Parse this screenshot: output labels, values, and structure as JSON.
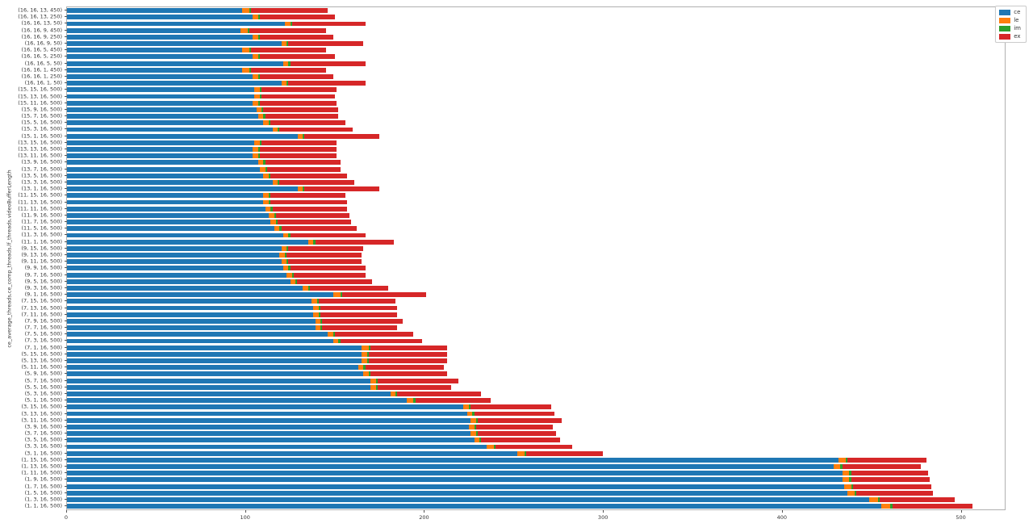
{
  "chart_data": {
    "type": "bar",
    "subtype": "horizontal-stacked",
    "title": "",
    "xlabel": "",
    "ylabel": "ce_average_threads,ce_comp_threads,lf_threads,videoBufferLength",
    "xlim": [
      0,
      525
    ],
    "x_ticks": [
      0,
      100,
      200,
      300,
      400,
      500
    ],
    "x_tick_labels": [
      "0",
      "100",
      "200",
      "300",
      "400",
      "500"
    ],
    "grid": "off",
    "legend_position": "upper-right-outside",
    "background": "#ffffff",
    "spine_color": "#b0b0b0",
    "categories": [
      "(16, 16, 13, 450)",
      "(16, 16, 13, 250)",
      "(16, 16, 13, 50)",
      "(16, 16, 9, 450)",
      "(16, 16, 9, 250)",
      "(16, 16, 9, 50)",
      "(16, 16, 5, 450)",
      "(16, 16, 5, 250)",
      "(16, 16, 5, 50)",
      "(16, 16, 1, 450)",
      "(16, 16, 1, 250)",
      "(16, 16, 1, 50)",
      "(15, 15, 16, 500)",
      "(15, 13, 16, 500)",
      "(15, 11, 16, 500)",
      "(15, 9, 16, 500)",
      "(15, 7, 16, 500)",
      "(15, 5, 16, 500)",
      "(15, 3, 16, 500)",
      "(15, 1, 16, 500)",
      "(13, 15, 16, 500)",
      "(13, 13, 16, 500)",
      "(13, 11, 16, 500)",
      "(13, 9, 16, 500)",
      "(13, 7, 16, 500)",
      "(13, 5, 16, 500)",
      "(13, 3, 16, 500)",
      "(13, 1, 16, 500)",
      "(11, 15, 16, 500)",
      "(11, 13, 16, 500)",
      "(11, 11, 16, 500)",
      "(11, 9, 16, 500)",
      "(11, 7, 16, 500)",
      "(11, 5, 16, 500)",
      "(11, 3, 16, 500)",
      "(11, 1, 16, 500)",
      "(9, 15, 16, 500)",
      "(9, 13, 16, 500)",
      "(9, 11, 16, 500)",
      "(9, 9, 16, 500)",
      "(9, 7, 16, 500)",
      "(9, 5, 16, 500)",
      "(9, 3, 16, 500)",
      "(9, 1, 16, 500)",
      "(7, 15, 16, 500)",
      "(7, 13, 16, 500)",
      "(7, 11, 16, 500)",
      "(7, 9, 16, 500)",
      "(7, 7, 16, 500)",
      "(7, 5, 16, 500)",
      "(7, 3, 16, 500)",
      "(7, 1, 16, 500)",
      "(5, 15, 16, 500)",
      "(5, 13, 16, 500)",
      "(5, 11, 16, 500)",
      "(5, 9, 16, 500)",
      "(5, 7, 16, 500)",
      "(5, 5, 16, 500)",
      "(5, 3, 16, 500)",
      "(5, 1, 16, 500)",
      "(3, 15, 16, 500)",
      "(3, 13, 16, 500)",
      "(3, 11, 16, 500)",
      "(3, 9, 16, 500)",
      "(3, 7, 16, 500)",
      "(3, 5, 16, 500)",
      "(3, 3, 16, 500)",
      "(3, 1, 16, 500)",
      "(1, 15, 16, 500)",
      "(1, 13, 16, 500)",
      "(1, 11, 16, 500)",
      "(1, 9, 16, 500)",
      "(1, 7, 16, 500)",
      "(1, 5, 16, 500)",
      "(1, 3, 16, 500)",
      "(1, 1, 16, 500)"
    ],
    "series": [
      {
        "name": "ce",
        "color": "#1f77b4",
        "values": [
          98,
          104,
          122,
          97,
          104,
          120,
          98,
          104,
          121,
          98,
          104,
          120,
          105,
          105,
          104,
          106,
          107,
          110,
          115,
          129,
          105,
          104,
          104,
          107,
          108,
          110,
          115,
          129,
          110,
          110,
          111,
          113,
          114,
          116,
          121,
          135,
          120,
          119,
          120,
          121,
          123,
          125,
          132,
          149,
          137,
          138,
          138,
          139,
          139,
          146,
          149,
          165,
          165,
          165,
          163,
          166,
          170,
          170,
          181,
          190,
          222,
          224,
          226,
          225,
          226,
          228,
          235,
          252,
          432,
          429,
          434,
          434,
          435,
          437,
          449,
          456
        ]
      },
      {
        "name": "le",
        "color": "#ff7f0e",
        "values": [
          4,
          3,
          3,
          4,
          3,
          3,
          4,
          3,
          3,
          4,
          3,
          3,
          3,
          3,
          3,
          3,
          3,
          3,
          3,
          3,
          3,
          3,
          3,
          3,
          3,
          3,
          3,
          3,
          3,
          3,
          3,
          3,
          3,
          3,
          3,
          3,
          3,
          3,
          3,
          3,
          3,
          3,
          3,
          4,
          3,
          3,
          3,
          3,
          3,
          3,
          3,
          4,
          3,
          3,
          3,
          3,
          3,
          3,
          3,
          4,
          3,
          3,
          3,
          3,
          3,
          3,
          4,
          4,
          4,
          4,
          4,
          4,
          4,
          4,
          5,
          5
        ]
      },
      {
        "name": "im",
        "color": "#2ca02c",
        "values": [
          1,
          1,
          1,
          1,
          1,
          1,
          1,
          1,
          1,
          1,
          1,
          1,
          1,
          1,
          1,
          1,
          1,
          1,
          1,
          1,
          1,
          1,
          1,
          1,
          1,
          1,
          1,
          1,
          1,
          1,
          1,
          1,
          1,
          1,
          1,
          1,
          1,
          1,
          1,
          1,
          1,
          1,
          1,
          1,
          1,
          1,
          1,
          1,
          1,
          1,
          1,
          1,
          1,
          1,
          1,
          1,
          1,
          1,
          1,
          1,
          1,
          1,
          1,
          1,
          1,
          1,
          1,
          1,
          1,
          1,
          1,
          1,
          1,
          1,
          1,
          1
        ]
      },
      {
        "name": "ex",
        "color": "#d62728",
        "values": [
          43,
          42,
          41,
          43,
          41,
          42,
          42,
          42,
          42,
          42,
          41,
          43,
          42,
          41,
          43,
          42,
          41,
          42,
          41,
          42,
          42,
          43,
          43,
          42,
          41,
          43,
          42,
          42,
          42,
          43,
          42,
          41,
          41,
          42,
          42,
          44,
          42,
          42,
          41,
          42,
          40,
          42,
          44,
          47,
          43,
          43,
          43,
          45,
          42,
          44,
          46,
          43,
          44,
          44,
          44,
          43,
          45,
          41,
          47,
          42,
          45,
          45,
          47,
          43,
          44,
          44,
          43,
          43,
          44,
          44,
          43,
          44,
          44,
          43,
          42,
          45
        ]
      }
    ],
    "legend_entries": [
      {
        "label": "ce",
        "color": "#1f77b4"
      },
      {
        "label": "le",
        "color": "#ff7f0e"
      },
      {
        "label": "im",
        "color": "#2ca02c"
      },
      {
        "label": "ex",
        "color": "#d62728"
      }
    ]
  }
}
